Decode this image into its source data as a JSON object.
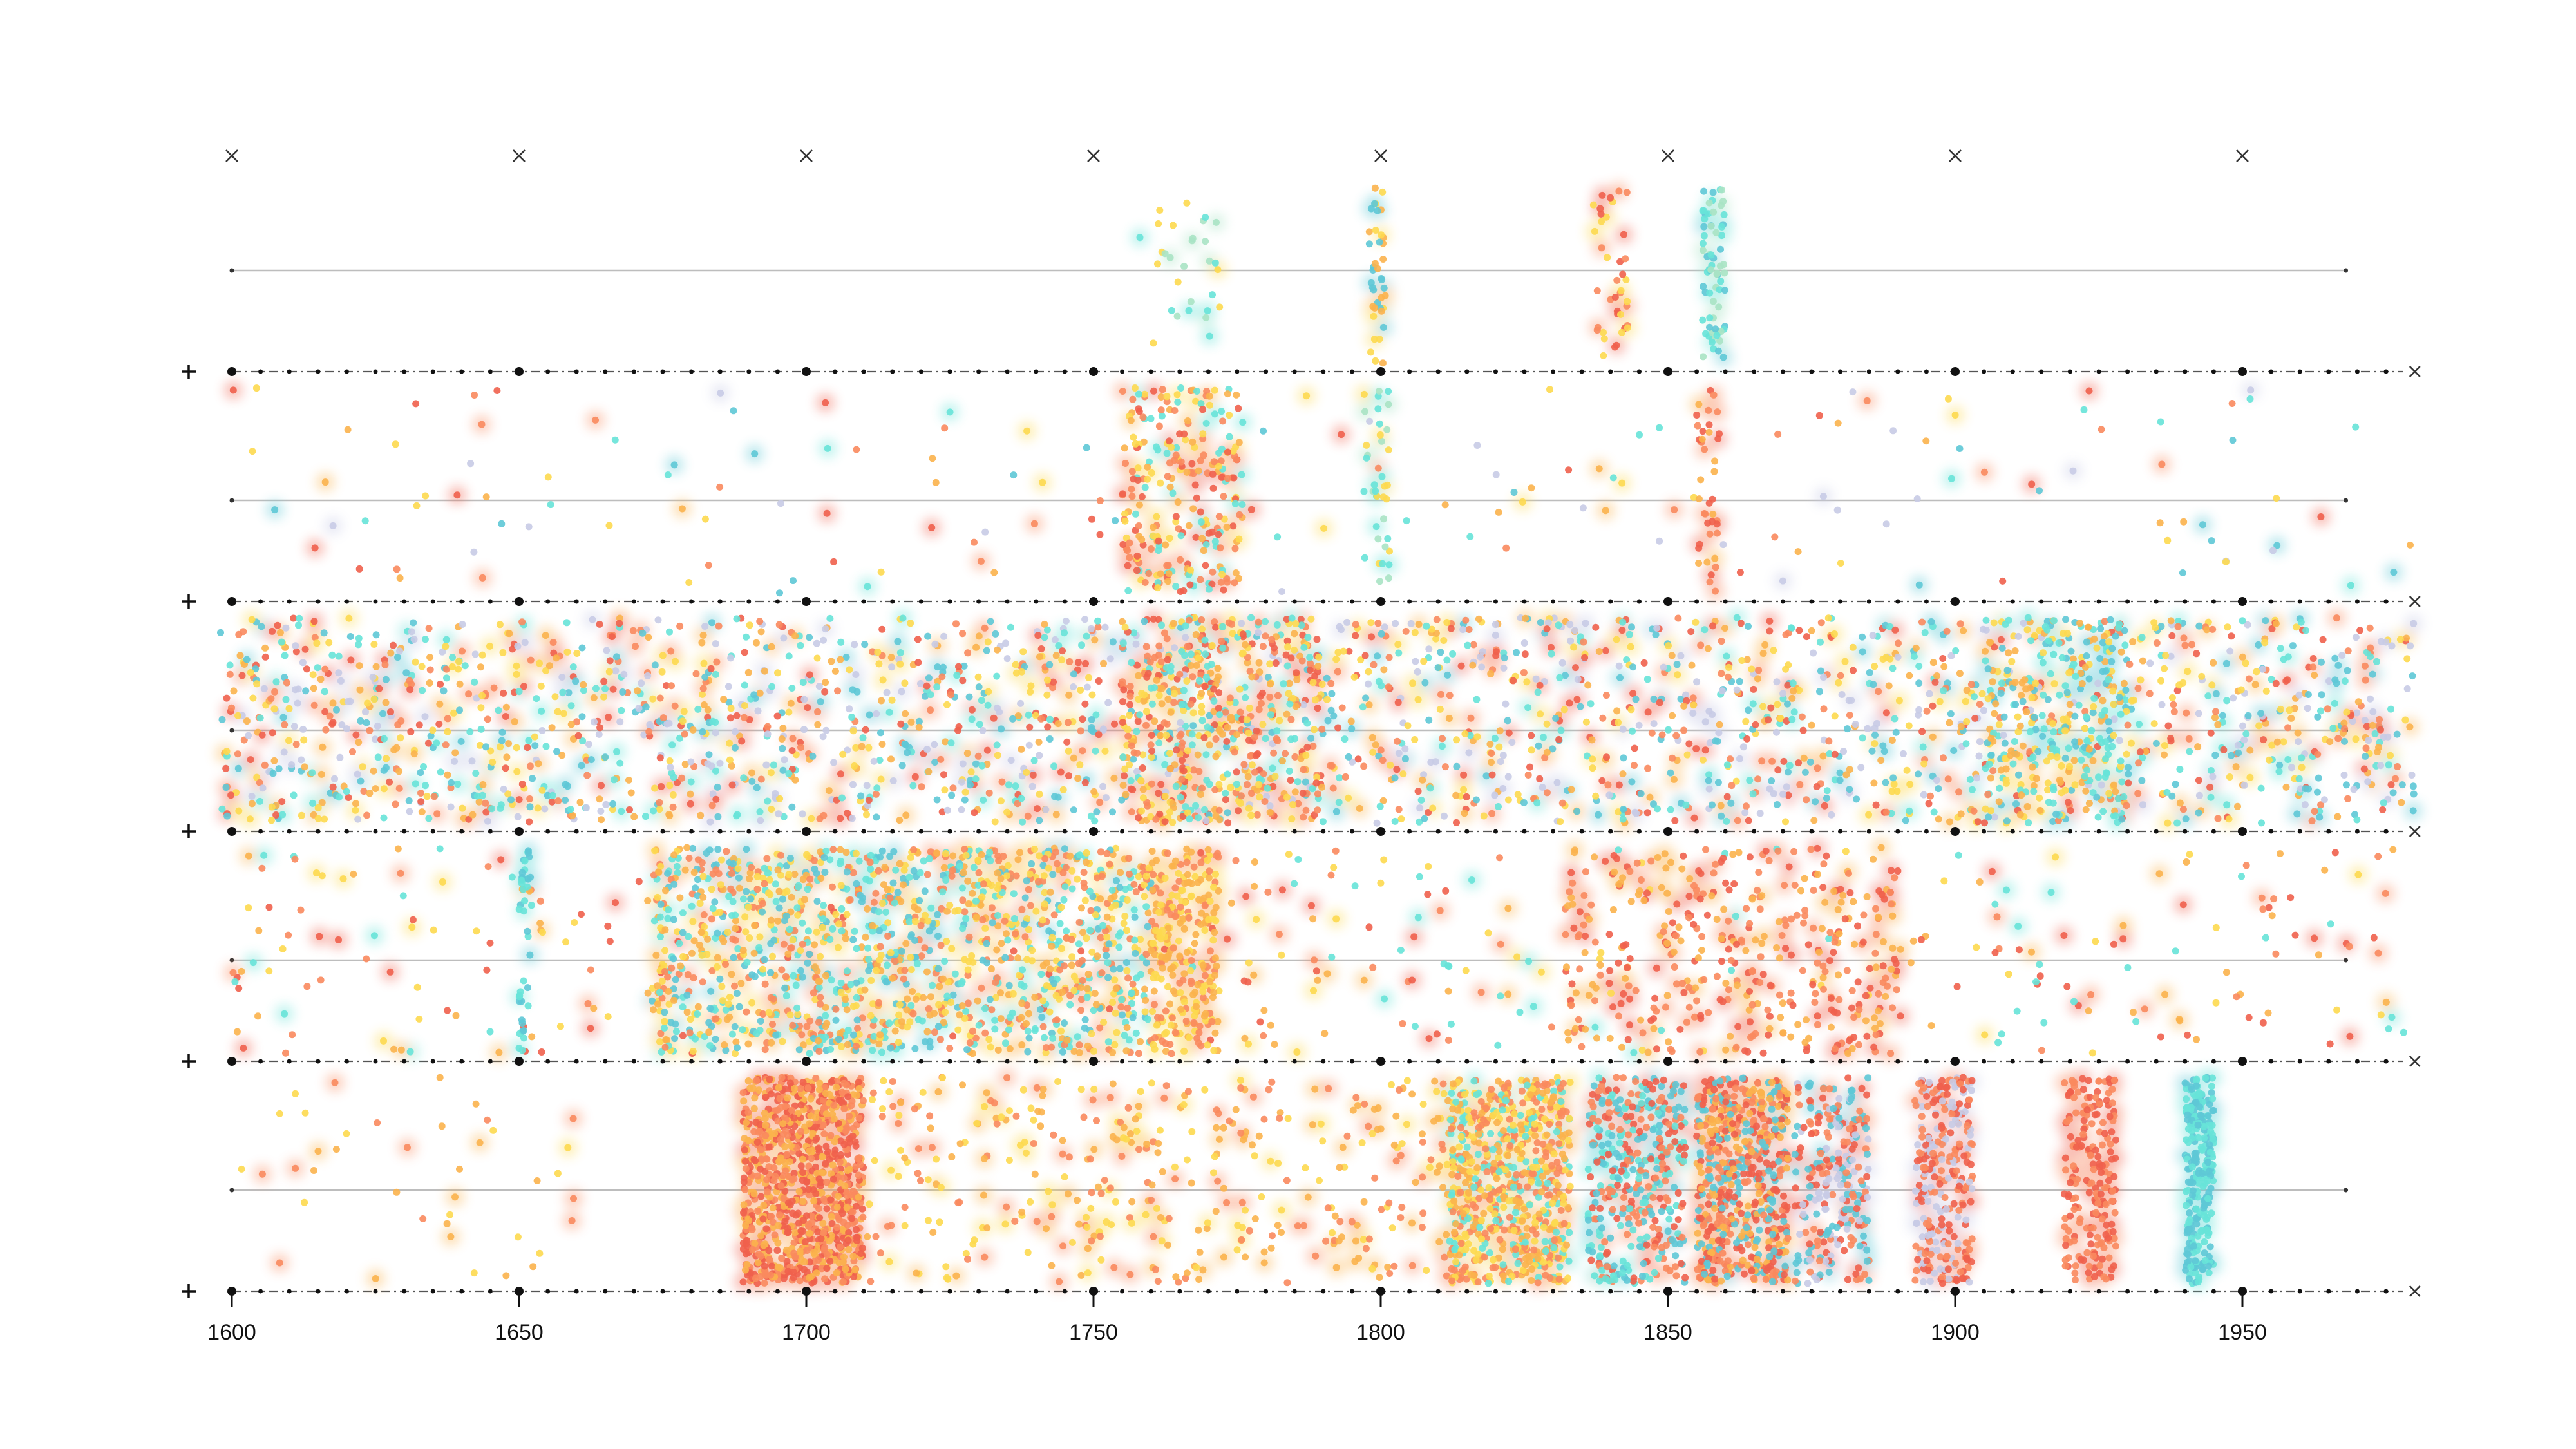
{
  "chart_data": {
    "type": "scatter",
    "title": "",
    "xlabel": "",
    "ylabel": "",
    "xlim": [
      1600,
      1980
    ],
    "x_ticks": [
      1600,
      1650,
      1700,
      1750,
      1800,
      1850,
      1900,
      1950
    ],
    "tick_labels": [
      "1600",
      "1650",
      "1700",
      "1750",
      "1800",
      "1850",
      "1900",
      "1950"
    ],
    "grid": true,
    "row_count": 5,
    "palette": [
      "#f0604d",
      "#f98a5e",
      "#fbb24c",
      "#fdd94f",
      "#67e3d8",
      "#5ec8d6",
      "#c8cbe6",
      "#a8e3c4"
    ],
    "series": [
      {
        "clusters": [
          {
            "x": [
              1758,
              1772
            ],
            "count": 30,
            "colors": [
              4,
              7,
              3
            ]
          },
          {
            "x": [
              1798,
              1801
            ],
            "count": 40,
            "colors": [
              3,
              2,
              5
            ]
          },
          {
            "x": [
              1837,
              1843
            ],
            "count": 40,
            "colors": [
              0,
              1,
              3
            ]
          },
          {
            "x": [
              1856,
              1860
            ],
            "count": 70,
            "colors": [
              4,
              7,
              5
            ]
          }
        ]
      },
      {
        "clusters": [
          {
            "x": [
              1600,
              1980
            ],
            "count": 160,
            "colors": [
              0,
              1,
              2,
              3,
              4,
              5,
              6
            ]
          },
          {
            "x": [
              1755,
              1776
            ],
            "count": 260,
            "colors": [
              1,
              0,
              2,
              4,
              3
            ]
          },
          {
            "x": [
              1797,
              1802
            ],
            "count": 35,
            "colors": [
              4,
              3,
              7
            ]
          },
          {
            "x": [
              1855,
              1859
            ],
            "count": 40,
            "colors": [
              1,
              0,
              2
            ]
          }
        ]
      },
      {
        "clusters": [
          {
            "x": [
              1598,
              1980
            ],
            "count": 2600,
            "colors": [
              2,
              3,
              1,
              0,
              4,
              5,
              6
            ]
          },
          {
            "x": [
              1755,
              1790
            ],
            "count": 400,
            "colors": [
              2,
              1,
              0,
              3,
              4
            ]
          },
          {
            "x": [
              1905,
              1930
            ],
            "count": 260,
            "colors": [
              4,
              5,
              2,
              3
            ]
          }
        ]
      },
      {
        "clusters": [
          {
            "x": [
              1600,
              1980
            ],
            "count": 420,
            "colors": [
              1,
              0,
              3,
              2,
              4
            ]
          },
          {
            "x": [
              1673,
              1760
            ],
            "count": 1300,
            "colors": [
              4,
              2,
              3,
              5,
              1
            ]
          },
          {
            "x": [
              1760,
              1772
            ],
            "count": 260,
            "colors": [
              2,
              3,
              1
            ]
          },
          {
            "x": [
              1832,
              1890
            ],
            "count": 380,
            "colors": [
              0,
              1,
              2
            ]
          },
          {
            "x": [
              1650,
              1652
            ],
            "count": 40,
            "colors": [
              4,
              5
            ]
          }
        ]
      },
      {
        "clusters": [
          {
            "x": [
              1600,
              1660
            ],
            "count": 40,
            "colors": [
              2,
              3,
              1
            ]
          },
          {
            "x": [
              1689,
              1710
            ],
            "count": 950,
            "colors": [
              0,
              1,
              2
            ]
          },
          {
            "x": [
              1710,
              1812
            ],
            "count": 380,
            "colors": [
              3,
              2,
              1
            ]
          },
          {
            "x": [
              1812,
              1833
            ],
            "count": 700,
            "colors": [
              3,
              2,
              4,
              1
            ]
          },
          {
            "x": [
              1836,
              1853
            ],
            "count": 380,
            "colors": [
              0,
              1,
              5,
              4
            ]
          },
          {
            "x": [
              1855,
              1871
            ],
            "count": 600,
            "colors": [
              0,
              1,
              2,
              5
            ]
          },
          {
            "x": [
              1872,
              1885
            ],
            "count": 260,
            "colors": [
              6,
              0,
              1,
              5
            ]
          },
          {
            "x": [
              1893,
              1903
            ],
            "count": 280,
            "colors": [
              0,
              1,
              6
            ]
          },
          {
            "x": [
              1919,
              1928
            ],
            "count": 200,
            "colors": [
              0,
              1
            ]
          },
          {
            "x": [
              1940,
              1945
            ],
            "count": 260,
            "colors": [
              5,
              4
            ]
          }
        ]
      }
    ]
  }
}
